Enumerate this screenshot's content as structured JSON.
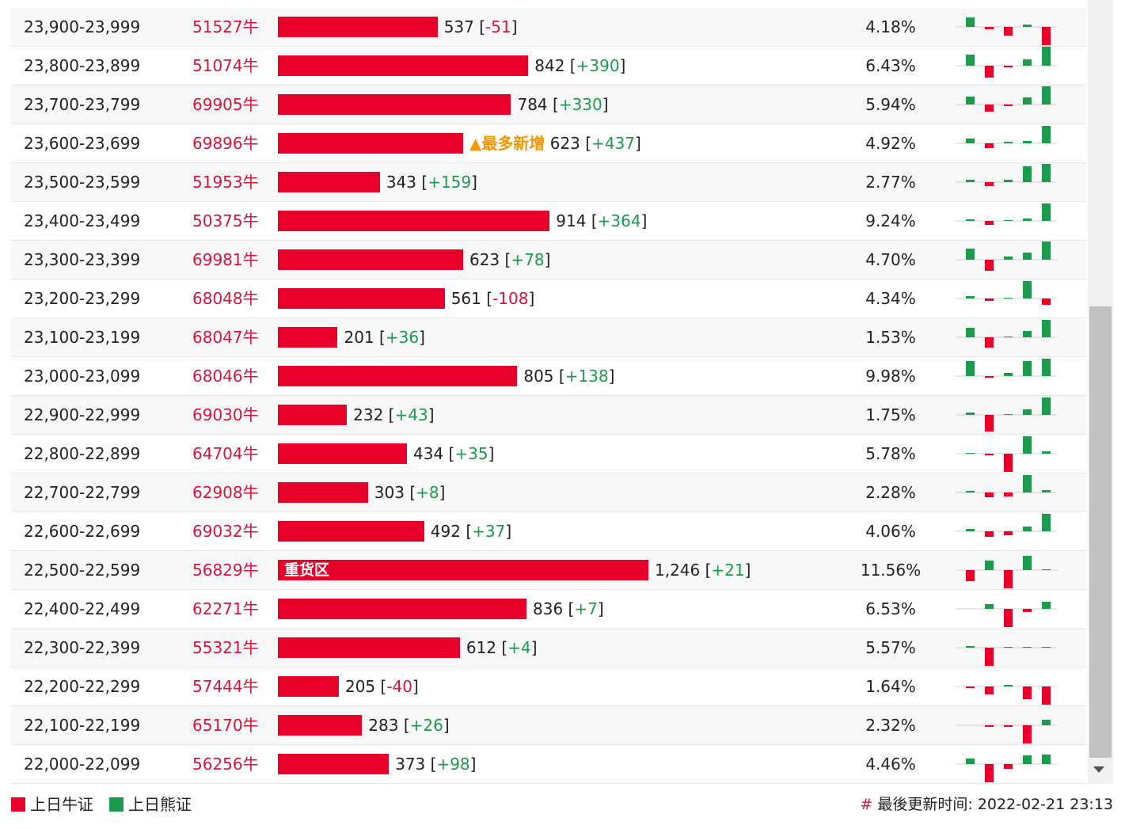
{
  "table": {
    "rows": [
      {
        "range": "23,900-23,999",
        "code": "51527牛",
        "count": 537,
        "change": "-51",
        "pct": "4.18%",
        "spark": [
          12,
          -3,
          -11,
          3,
          -23
        ]
      },
      {
        "range": "23,800-23,899",
        "code": "51074牛",
        "count": 842,
        "change": "+390",
        "pct": "6.43%",
        "spark": [
          14,
          -15,
          -2,
          8,
          24
        ]
      },
      {
        "range": "23,700-23,799",
        "code": "69905牛",
        "count": 784,
        "change": "+330",
        "pct": "5.94%",
        "spark": [
          10,
          -9,
          -2,
          9,
          23
        ]
      },
      {
        "range": "23,600-23,699",
        "code": "69896牛",
        "count": 623,
        "change": "+437",
        "pct": "4.92%",
        "note": "▲最多新增",
        "spark": [
          6,
          -6,
          2,
          3,
          22
        ]
      },
      {
        "range": "23,500-23,599",
        "code": "51953牛",
        "count": 343,
        "change": "+159",
        "pct": "2.77%",
        "spark": [
          3,
          -5,
          3,
          20,
          23
        ]
      },
      {
        "range": "23,400-23,499",
        "code": "50375牛",
        "count": 914,
        "change": "+364",
        "pct": "9.24%",
        "spark": [
          2,
          -5,
          1,
          3,
          22
        ]
      },
      {
        "range": "23,300-23,399",
        "code": "69981牛",
        "count": 623,
        "change": "+78",
        "pct": "4.70%",
        "spark": [
          14,
          -14,
          4,
          9,
          23
        ]
      },
      {
        "range": "23,200-23,299",
        "code": "68048牛",
        "count": 561,
        "change": "-108",
        "pct": "4.34%",
        "spark": [
          3,
          -3,
          1,
          22,
          -8
        ]
      },
      {
        "range": "23,100-23,199",
        "code": "68047牛",
        "count": 201,
        "change": "+36",
        "pct": "1.53%",
        "spark": [
          12,
          -13,
          1,
          8,
          22
        ]
      },
      {
        "range": "23,000-23,099",
        "code": "68046牛",
        "count": 805,
        "change": "+138",
        "pct": "9.98%",
        "spark": [
          19,
          -2,
          4,
          19,
          22
        ]
      },
      {
        "range": "22,900-22,999",
        "code": "69030牛",
        "count": 232,
        "change": "+43",
        "pct": "1.75%",
        "spark": [
          3,
          -21,
          1,
          7,
          22
        ]
      },
      {
        "range": "22,800-22,899",
        "code": "64704牛",
        "count": 434,
        "change": "+35",
        "pct": "5.78%",
        "spark": [
          1,
          -2,
          -23,
          22,
          3
        ]
      },
      {
        "range": "22,700-22,799",
        "code": "62908牛",
        "count": 303,
        "change": "+8",
        "pct": "2.28%",
        "spark": [
          2,
          -6,
          -5,
          22,
          3
        ]
      },
      {
        "range": "22,600-22,699",
        "code": "69032牛",
        "count": 492,
        "change": "+37",
        "pct": "4.06%",
        "spark": [
          3,
          -7,
          -5,
          6,
          22
        ]
      },
      {
        "range": "22,500-22,599",
        "code": "56829牛",
        "count": 1246,
        "count_label": "1,246",
        "change": "+21",
        "pct": "11.56%",
        "bar_text": "重货区",
        "spark": [
          -14,
          12,
          -23,
          18,
          1
        ]
      },
      {
        "range": "22,400-22,499",
        "code": "62271牛",
        "count": 836,
        "change": "+7",
        "pct": "6.53%",
        "spark": [
          0,
          6,
          -23,
          -4,
          9
        ]
      },
      {
        "range": "22,300-22,399",
        "code": "55321牛",
        "count": 612,
        "change": "+4",
        "pct": "5.57%",
        "spark": [
          2,
          -23,
          1,
          1,
          1
        ]
      },
      {
        "range": "22,200-22,299",
        "code": "57444牛",
        "count": 205,
        "change": "-40",
        "pct": "1.64%",
        "spark": [
          -2,
          -10,
          2,
          -16,
          -23
        ]
      },
      {
        "range": "22,100-22,199",
        "code": "65170牛",
        "count": 283,
        "change": "+26",
        "pct": "2.32%",
        "spark": [
          0,
          -2,
          -2,
          -23,
          7
        ]
      },
      {
        "range": "22,000-22,099",
        "code": "56256牛",
        "count": 373,
        "change": "+98",
        "pct": "4.46%",
        "spark": [
          7,
          -23,
          -6,
          11,
          12
        ]
      }
    ]
  },
  "legend": {
    "items": [
      {
        "label": "上日牛证",
        "color": "#e8002b"
      },
      {
        "label": "上日熊证",
        "color": "#1c9a4e"
      }
    ]
  },
  "footer": {
    "hash": "#",
    "text": "最後更新时间: 2022-02-21 23:13"
  }
}
